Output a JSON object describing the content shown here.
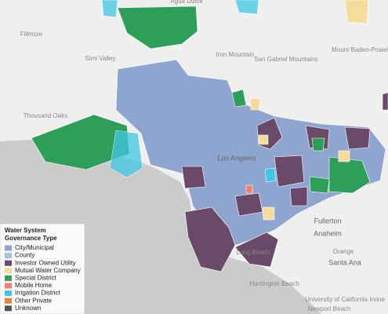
{
  "legend": {
    "title": [
      "Water System",
      "Governance Type"
    ],
    "items": [
      {
        "label": "City/Municipal",
        "color": "#8ea6cf"
      },
      {
        "label": "County",
        "color": "#a9c0e0"
      },
      {
        "label": "Investor Owned Utility",
        "color": "#6a4a68"
      },
      {
        "label": "Mutual Water Company",
        "color": "#f6dc9c"
      },
      {
        "label": "Special District",
        "color": "#2e9e5b"
      },
      {
        "label": "Mobile Home",
        "color": "#f07f6f"
      },
      {
        "label": "Irrigation District",
        "color": "#3fc7e3"
      },
      {
        "label": "Other Private",
        "color": "#e8853a"
      },
      {
        "label": "Unknown",
        "color": "#555555"
      }
    ]
  },
  "places": [
    "Fillmore",
    "Simi Valley",
    "Thousand Oaks",
    "Los Angeles",
    "Fullerton",
    "Anaheim",
    "Orange",
    "Santa Ana",
    "Huntington Beach",
    "Long Beach",
    "Iron Mountain",
    "San Gabriel Mountains",
    "Mount Baden-Powell",
    "Agua Dulce",
    "Newport Beach",
    "University of California Irvine"
  ]
}
